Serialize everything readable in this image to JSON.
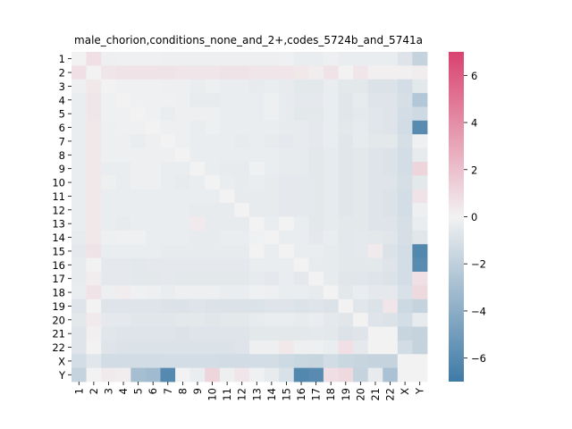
{
  "chart_data": {
    "type": "heatmap",
    "title": "male_chorion,conditions_none_and_2+,codes_5724b_and_5741a",
    "xlabel": "",
    "ylabel": "",
    "categories": [
      "1",
      "2",
      "3",
      "4",
      "5",
      "6",
      "7",
      "8",
      "9",
      "10",
      "11",
      "12",
      "13",
      "14",
      "15",
      "16",
      "17",
      "18",
      "19",
      "20",
      "21",
      "22",
      "X",
      "Y"
    ],
    "vmin": -7,
    "vmax": 7,
    "colorbar_ticks": [
      6,
      4,
      2,
      0,
      -2,
      -4,
      -6
    ],
    "colormap": {
      "negative": "#3f7aa5",
      "center": "#f2f2f2",
      "positive": "#d9426e"
    },
    "values": [
      [
        0.0,
        0.7,
        -0.2,
        -0.1,
        -0.1,
        -0.1,
        -0.2,
        -0.2,
        -0.2,
        -0.2,
        -0.2,
        -0.2,
        -0.2,
        -0.2,
        -0.1,
        -0.3,
        -0.3,
        -0.2,
        -0.3,
        -0.3,
        -0.3,
        -0.3,
        -0.8,
        -1.8
      ],
      [
        0.7,
        0.0,
        0.5,
        0.6,
        0.6,
        0.6,
        0.6,
        0.5,
        0.5,
        0.5,
        0.6,
        0.6,
        0.5,
        0.5,
        0.5,
        0.4,
        0.2,
        0.6,
        0.0,
        0.5,
        0.1,
        0.1,
        0.1,
        0.2
      ],
      [
        -0.2,
        0.4,
        0.0,
        -0.1,
        -0.1,
        -0.1,
        -0.2,
        -0.2,
        -0.3,
        -0.2,
        -0.3,
        -0.3,
        -0.4,
        -0.3,
        -0.4,
        -0.6,
        -0.6,
        -0.3,
        -0.6,
        -0.6,
        -0.9,
        -0.9,
        -1.2,
        -0.6
      ],
      [
        -0.3,
        0.5,
        -0.1,
        0.0,
        -0.1,
        -0.1,
        -0.1,
        -0.2,
        -0.4,
        -0.4,
        -0.3,
        -0.3,
        -0.3,
        -0.2,
        -0.4,
        -0.5,
        -0.5,
        -0.3,
        -0.7,
        -0.4,
        -0.8,
        -0.8,
        -1.1,
        -2.5
      ],
      [
        -0.3,
        0.5,
        -0.1,
        -0.1,
        0.0,
        -0.1,
        -0.3,
        -0.2,
        -0.2,
        -0.2,
        -0.3,
        -0.3,
        -0.3,
        -0.2,
        -0.4,
        -0.6,
        -0.6,
        -0.3,
        -0.7,
        -0.5,
        -0.7,
        -0.8,
        -1.2,
        -1.4
      ],
      [
        -0.3,
        0.4,
        -0.2,
        -0.1,
        -0.1,
        0.0,
        -0.2,
        -0.2,
        -0.3,
        -0.2,
        -0.3,
        -0.3,
        -0.3,
        -0.3,
        -0.4,
        -0.4,
        -0.5,
        -0.3,
        -0.6,
        -0.4,
        -0.7,
        -0.8,
        -1.3,
        -6.0
      ],
      [
        -0.3,
        0.4,
        -0.2,
        -0.2,
        -0.3,
        -0.2,
        0.0,
        -0.2,
        -0.3,
        -0.3,
        -0.3,
        -0.4,
        -0.3,
        -0.4,
        -0.5,
        -0.4,
        -0.5,
        -0.3,
        -0.7,
        -0.4,
        -0.6,
        -0.6,
        -1.1,
        -0.1
      ],
      [
        -0.3,
        0.4,
        -0.2,
        -0.2,
        -0.2,
        -0.2,
        -0.2,
        0.0,
        -0.3,
        -0.3,
        -0.3,
        -0.3,
        -0.3,
        -0.3,
        -0.4,
        -0.4,
        -0.6,
        -0.4,
        -0.7,
        -0.6,
        -0.8,
        -0.9,
        -1.2,
        -0.4
      ],
      [
        -0.3,
        0.4,
        -0.3,
        -0.3,
        -0.2,
        -0.2,
        -0.3,
        -0.3,
        0.0,
        -0.3,
        -0.4,
        -0.4,
        -0.1,
        -0.3,
        -0.4,
        -0.4,
        -0.6,
        -0.4,
        -0.7,
        -0.6,
        -0.8,
        -0.9,
        -1.2,
        1.2
      ],
      [
        -0.3,
        0.4,
        -0.2,
        -0.3,
        -0.2,
        -0.2,
        -0.3,
        -0.4,
        -0.3,
        0.0,
        -0.3,
        -0.4,
        -0.3,
        -0.4,
        -0.5,
        -0.5,
        -0.6,
        -0.4,
        -0.7,
        -0.6,
        -0.8,
        -0.8,
        -1.1,
        -0.6
      ],
      [
        -0.3,
        0.4,
        -0.3,
        -0.3,
        -0.3,
        -0.3,
        -0.3,
        -0.3,
        -0.3,
        -0.3,
        0.0,
        -0.4,
        -0.4,
        -0.4,
        -0.5,
        -0.5,
        -0.6,
        -0.4,
        -0.7,
        -0.6,
        -0.8,
        -0.9,
        -1.2,
        0.6
      ],
      [
        -0.3,
        0.4,
        -0.3,
        -0.3,
        -0.3,
        -0.3,
        -0.3,
        -0.3,
        -0.4,
        -0.4,
        -0.4,
        0.0,
        -0.4,
        -0.4,
        -0.5,
        -0.5,
        -0.6,
        -0.4,
        -0.7,
        -0.6,
        -0.8,
        -0.9,
        -1.2,
        -0.2
      ],
      [
        -0.3,
        0.4,
        -0.3,
        -0.4,
        -0.3,
        -0.3,
        -0.3,
        -0.3,
        0.3,
        -0.4,
        -0.4,
        -0.4,
        0.0,
        -0.3,
        0.0,
        -0.3,
        -0.6,
        -0.4,
        -0.6,
        -0.6,
        -0.8,
        -0.8,
        -1.1,
        -0.3
      ],
      [
        -0.4,
        0.4,
        -0.2,
        -0.1,
        -0.1,
        -0.3,
        -0.3,
        -0.3,
        -0.4,
        -0.4,
        -0.3,
        -0.3,
        -0.1,
        0.0,
        -0.3,
        -0.3,
        -0.5,
        -0.3,
        -0.6,
        -0.5,
        -0.6,
        -0.7,
        -1.1,
        -0.7
      ],
      [
        -0.5,
        0.6,
        -0.3,
        -0.3,
        -0.3,
        -0.3,
        -0.4,
        -0.4,
        -0.4,
        -0.4,
        -0.4,
        -0.4,
        0.0,
        -0.3,
        0.0,
        -0.3,
        -0.3,
        -0.4,
        -0.6,
        -0.5,
        0.3,
        -0.9,
        -1.2,
        -6.2
      ],
      [
        -0.4,
        0.0,
        -0.5,
        -0.5,
        -0.6,
        -0.5,
        -0.5,
        -0.5,
        -0.5,
        -0.5,
        -0.5,
        -0.5,
        -0.3,
        -0.3,
        -0.3,
        0.0,
        -0.4,
        -0.4,
        -0.6,
        -0.6,
        -0.6,
        -0.8,
        -1.2,
        -6.0
      ],
      [
        -0.4,
        0.2,
        -0.5,
        -0.5,
        -0.6,
        -0.6,
        -0.5,
        -0.6,
        -0.6,
        -0.6,
        -0.6,
        -0.6,
        -0.4,
        -0.5,
        -0.3,
        -0.5,
        0.0,
        -0.4,
        -0.7,
        -0.7,
        -0.8,
        -0.9,
        -1.2,
        0.7
      ],
      [
        -0.3,
        0.6,
        -0.2,
        0.2,
        -0.1,
        -0.2,
        -0.3,
        -0.2,
        -0.2,
        -0.2,
        -0.3,
        -0.3,
        -0.1,
        -0.2,
        -0.3,
        -0.3,
        -0.4,
        0.0,
        -0.6,
        -0.3,
        -0.5,
        -0.5,
        -1.0,
        1.0
      ],
      [
        -0.8,
        0.0,
        -0.8,
        -0.8,
        -0.8,
        -0.8,
        -0.9,
        -0.9,
        -0.8,
        -0.9,
        -0.9,
        -0.9,
        -0.9,
        -0.8,
        -0.8,
        -0.9,
        -0.8,
        -0.9,
        0.0,
        -0.7,
        -0.9,
        0.5,
        -1.5,
        -1.8
      ],
      [
        -0.6,
        0.3,
        -0.5,
        -0.5,
        -0.7,
        -0.7,
        -0.7,
        -0.6,
        -0.6,
        -0.7,
        -0.6,
        -0.6,
        -0.4,
        -0.3,
        -0.3,
        -0.4,
        -0.3,
        -0.5,
        -0.7,
        0.0,
        -0.8,
        -0.9,
        -1.2,
        -0.4
      ],
      [
        -0.8,
        0.1,
        -0.7,
        -0.8,
        -0.8,
        -0.8,
        -0.8,
        -0.9,
        -0.8,
        -0.8,
        -0.8,
        -0.8,
        -0.6,
        -0.6,
        -0.6,
        -0.6,
        -0.5,
        -0.6,
        -0.9,
        -0.8,
        0.0,
        0.0,
        -1.7,
        -1.8
      ],
      [
        -0.8,
        0.0,
        -0.8,
        -0.9,
        -0.9,
        -0.9,
        -0.9,
        -0.9,
        -0.9,
        -0.9,
        -0.9,
        -0.8,
        -0.2,
        -0.2,
        0.4,
        -0.2,
        -0.2,
        -0.3,
        0.7,
        -0.5,
        0.0,
        0.0,
        -1.3,
        -1.8
      ],
      [
        -1.2,
        -0.7,
        -1.3,
        -1.3,
        -1.3,
        -1.3,
        -1.2,
        -1.2,
        -1.2,
        -1.2,
        -1.3,
        -1.3,
        -1.2,
        -1.2,
        -1.4,
        -1.6,
        -1.7,
        -1.3,
        -1.6,
        -1.7,
        -1.8,
        -1.8,
        0.0,
        0.0
      ],
      [
        -1.8,
        0.0,
        0.3,
        0.2,
        -3.0,
        -3.2,
        -6.1,
        0.0,
        -0.3,
        1.2,
        -0.2,
        0.5,
        -0.1,
        -0.4,
        -1.0,
        -6.2,
        -6.0,
        0.8,
        1.0,
        -1.8,
        -0.4,
        -2.8,
        0.0,
        0.0
      ]
    ]
  }
}
